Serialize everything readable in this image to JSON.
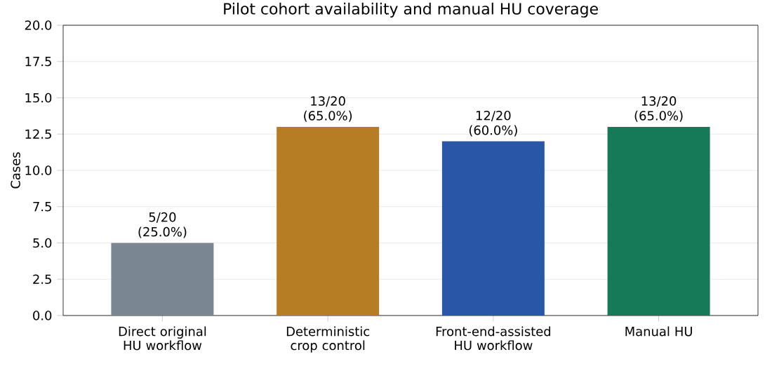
{
  "chart_data": {
    "type": "bar",
    "title": "Pilot cohort availability and manual HU coverage",
    "ylabel": "Cases",
    "categories": [
      "Direct original HU workflow",
      "Deterministic crop control",
      "Front-end-assisted HU workflow",
      "Manual HU"
    ],
    "values": [
      5,
      13,
      12,
      13
    ],
    "colors": [
      "#7a8793",
      "#b77d25",
      "#2a56a8",
      "#167a58"
    ],
    "value_labels": [
      "5/20 (25.0%)",
      "13/20 (65.0%)",
      "12/20 (60.0%)",
      "13/20 (65.0%)"
    ],
    "ylim": [
      0,
      20
    ],
    "yticks": [
      {
        "value": 0,
        "label": "0.0"
      },
      2.5,
      {
        "value": 5,
        "label": "5.0"
      },
      7.5,
      {
        "value": 10,
        "label": "10.0"
      },
      12.5,
      {
        "value": 15,
        "label": "15.0"
      },
      17.5,
      {
        "value": 20,
        "label": "20.0"
      }
    ],
    "grid": "y"
  }
}
